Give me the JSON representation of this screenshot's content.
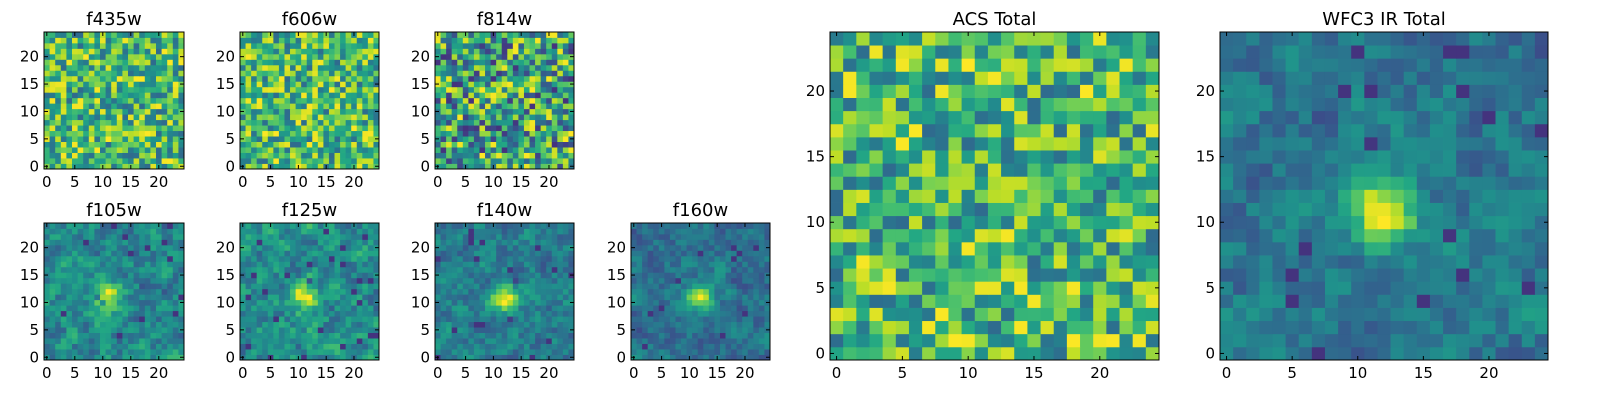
{
  "colormap": "viridis",
  "chart_data": [
    {
      "type": "heatmap",
      "title": "f435w",
      "grid_size": 25,
      "xlim": [
        0,
        24
      ],
      "ylim": [
        0,
        24
      ],
      "xticks": [
        0,
        5,
        10,
        15,
        20
      ],
      "yticks": [
        0,
        5,
        10,
        15,
        20
      ],
      "source_peak": 0.0,
      "noise": "high",
      "grid": false
    },
    {
      "type": "heatmap",
      "title": "f606w",
      "grid_size": 25,
      "xlim": [
        0,
        24
      ],
      "ylim": [
        0,
        24
      ],
      "xticks": [
        0,
        5,
        10,
        15,
        20
      ],
      "yticks": [
        0,
        5,
        10,
        15,
        20
      ],
      "source_peak": 0.0,
      "noise": "high",
      "grid": false
    },
    {
      "type": "heatmap",
      "title": "f814w",
      "grid_size": 25,
      "xlim": [
        0,
        24
      ],
      "ylim": [
        0,
        24
      ],
      "xticks": [
        0,
        5,
        10,
        15,
        20
      ],
      "yticks": [
        0,
        5,
        10,
        15,
        20
      ],
      "source_peak": 0.05,
      "noise": "high",
      "grid": false
    },
    {
      "type": "heatmap",
      "title": "f105w",
      "grid_size": 25,
      "xlim": [
        0,
        24
      ],
      "ylim": [
        0,
        24
      ],
      "xticks": [
        0,
        5,
        10,
        15,
        20
      ],
      "yticks": [
        0,
        5,
        10,
        15,
        20
      ],
      "source_peak": 0.35,
      "source_center": [
        11,
        11
      ],
      "noise": "smooth",
      "grid": false
    },
    {
      "type": "heatmap",
      "title": "f125w",
      "grid_size": 25,
      "xlim": [
        0,
        24
      ],
      "ylim": [
        0,
        24
      ],
      "xticks": [
        0,
        5,
        10,
        15,
        20
      ],
      "yticks": [
        0,
        5,
        10,
        15,
        20
      ],
      "source_peak": 0.4,
      "source_center": [
        11,
        11
      ],
      "noise": "smooth",
      "grid": false
    },
    {
      "type": "heatmap",
      "title": "f140w",
      "grid_size": 25,
      "xlim": [
        0,
        24
      ],
      "ylim": [
        0,
        24
      ],
      "xticks": [
        0,
        5,
        10,
        15,
        20
      ],
      "yticks": [
        0,
        5,
        10,
        15,
        20
      ],
      "source_peak": 0.45,
      "source_center": [
        12,
        11
      ],
      "noise": "smooth",
      "grid": false
    },
    {
      "type": "heatmap",
      "title": "f160w",
      "grid_size": 25,
      "xlim": [
        0,
        24
      ],
      "ylim": [
        0,
        24
      ],
      "xticks": [
        0,
        5,
        10,
        15,
        20
      ],
      "yticks": [
        0,
        5,
        10,
        15,
        20
      ],
      "source_peak": 0.55,
      "source_center": [
        12,
        11
      ],
      "noise": "smooth",
      "grid": false
    },
    {
      "type": "heatmap",
      "title": "ACS Total",
      "grid_size": 25,
      "xlim": [
        0,
        24
      ],
      "ylim": [
        0,
        24
      ],
      "xticks": [
        0,
        5,
        10,
        15,
        20
      ],
      "yticks": [
        0,
        5,
        10,
        15,
        20
      ],
      "source_peak": 0.0,
      "noise": "high",
      "grid": false
    },
    {
      "type": "heatmap",
      "title": "WFC3 IR Total",
      "grid_size": 25,
      "xlim": [
        0,
        24
      ],
      "ylim": [
        0,
        24
      ],
      "xticks": [
        0,
        5,
        10,
        15,
        20
      ],
      "yticks": [
        0,
        5,
        10,
        15,
        20
      ],
      "source_peak": 0.6,
      "source_center": [
        12,
        11
      ],
      "noise": "smooth",
      "grid": false
    }
  ]
}
